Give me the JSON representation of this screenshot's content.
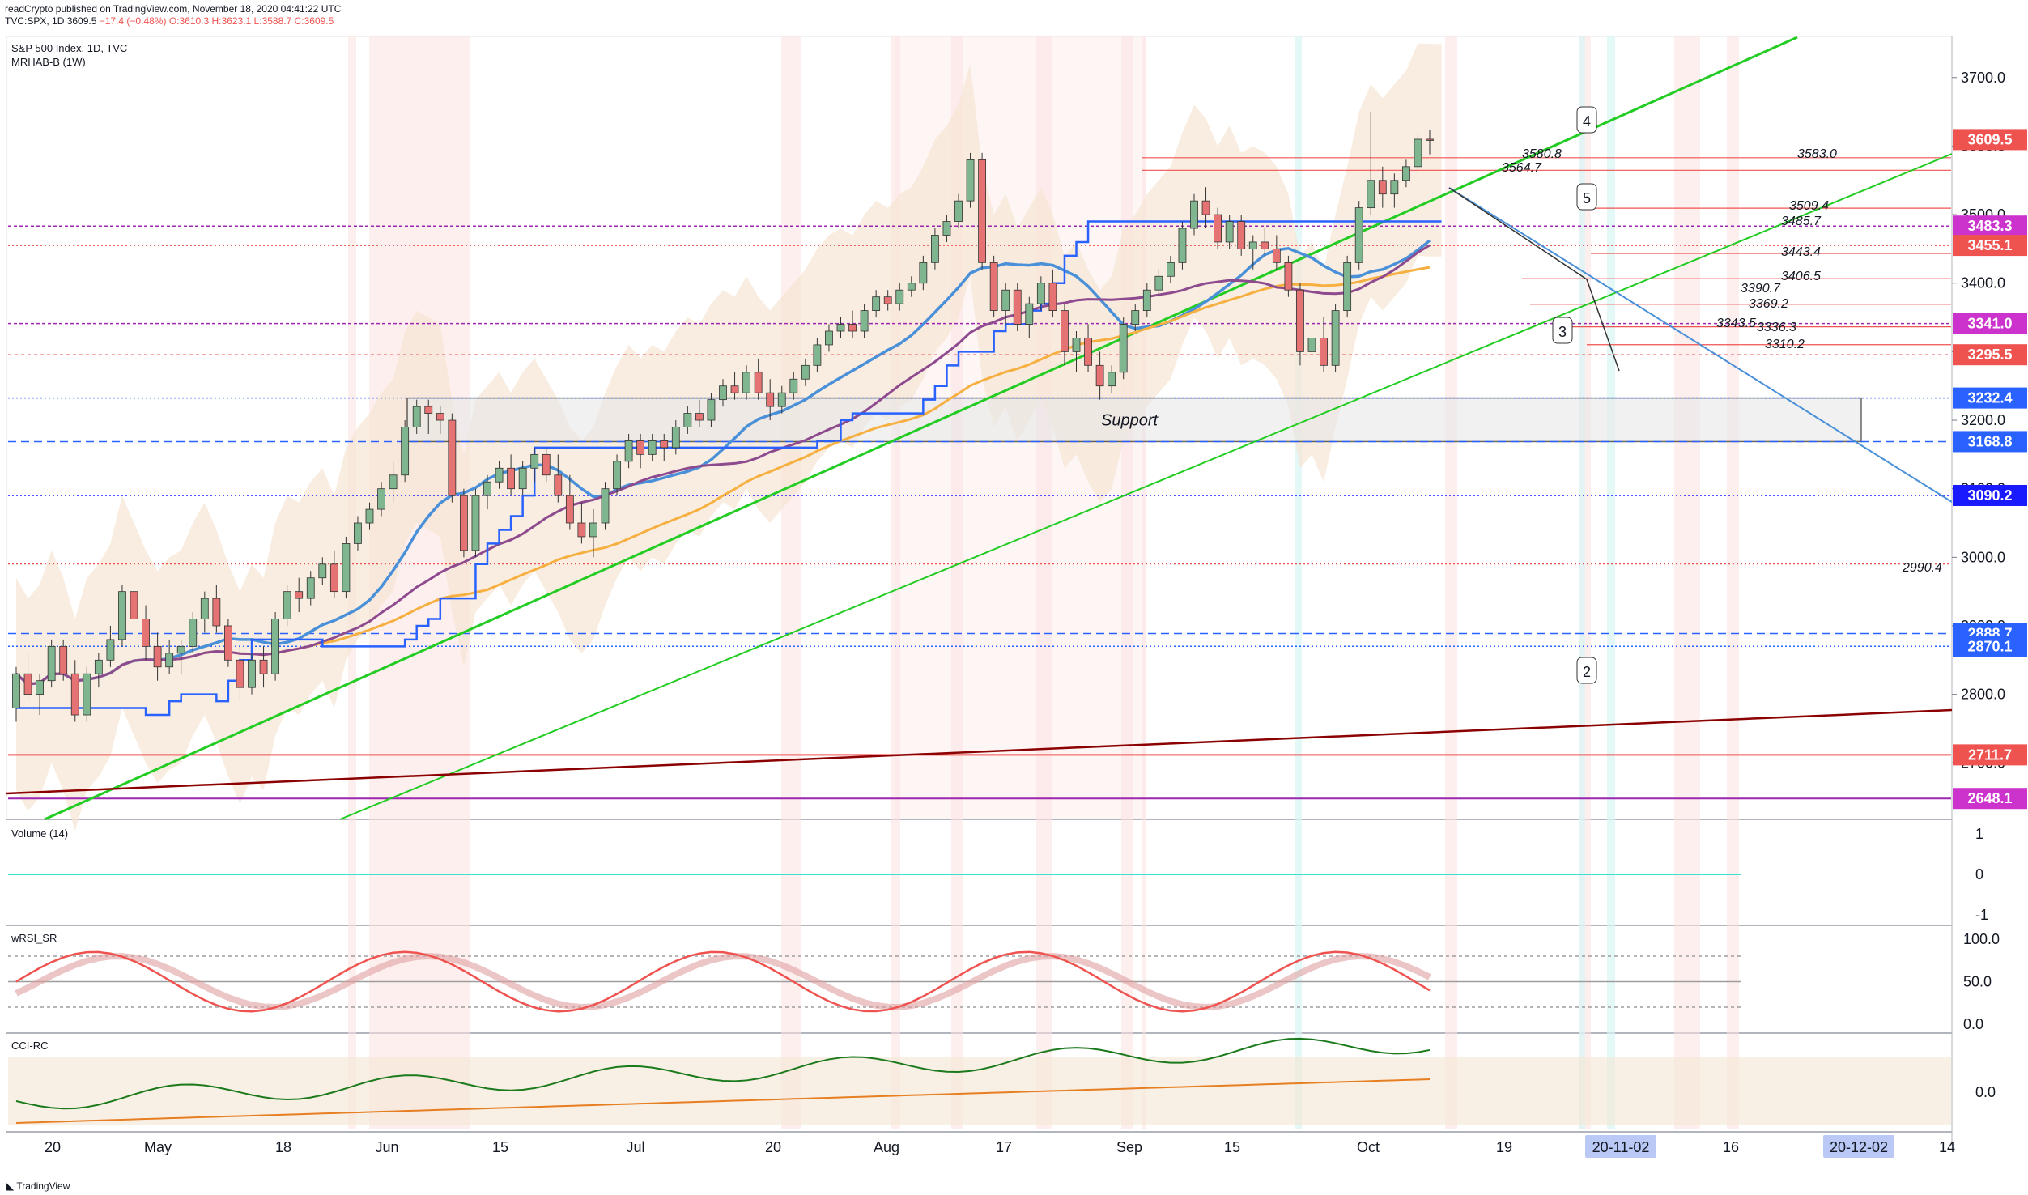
{
  "header": {
    "line1": "readCrypto published on TradingView.com, November 18, 2020 04:41:22 UTC",
    "line2_prefix": "TVC:SPX, 1D 3609.5",
    "change": "−17.4 (−0.48%)",
    "ohlc": "O:3610.3 H:3623.1 L:3588.7 C:3609.5"
  },
  "chart_title": "S&P 500 Index, 1D, TVC",
  "indicator_label": "MRHAB-B (1W)",
  "volume_label": "Volume (14)",
  "wrsi_label": "wRSI_SR",
  "cci_label": "CCI-RC",
  "support_label": "Support",
  "footer_brand": "TradingView",
  "colors": {
    "up": "#7fb58f",
    "down": "#e57373",
    "channel": "#22cc22",
    "blue": "#4a90d9",
    "red_line": "#8b0000",
    "orange": "#f5b041"
  },
  "chart_data": {
    "type": "candlestick",
    "symbol": "TVC:SPX",
    "ylim": [
      2620,
      3760
    ],
    "y_ticks": [
      "3700.0",
      "3600.0",
      "3500.0",
      "3400.0",
      "3300.0",
      "3200.0",
      "3100.0",
      "3000.0",
      "2900.0",
      "2800.0",
      "2700.0"
    ],
    "x_ticks": [
      "20",
      "May",
      "18",
      "Jun",
      "15",
      "Jul",
      "20",
      "Aug",
      "17",
      "Sep",
      "15",
      "Oct",
      "19",
      "20-11-02",
      "16",
      "20-12-02",
      "14"
    ],
    "price_tags": [
      {
        "value": "3609.5",
        "color": "#ef5350"
      },
      {
        "value": "3483.3",
        "color": "#cc33cc"
      },
      {
        "value": "3455.1",
        "color": "#ef5350"
      },
      {
        "value": "3341.0",
        "color": "#cc33cc"
      },
      {
        "value": "3295.5",
        "color": "#ef5350"
      },
      {
        "value": "3232.4",
        "color": "#2962ff"
      },
      {
        "value": "3168.8",
        "color": "#2962ff"
      },
      {
        "value": "3090.2",
        "color": "#1a1aff"
      },
      {
        "value": "2888.7",
        "color": "#2962ff"
      },
      {
        "value": "2870.1",
        "color": "#2962ff"
      },
      {
        "value": "2711.7",
        "color": "#ef5350"
      },
      {
        "value": "2648.1",
        "color": "#cc33cc"
      }
    ],
    "level_labels": [
      "3580.8",
      "3564.7",
      "3583.0",
      "3509.4",
      "3485.7",
      "3443.4",
      "3406.5",
      "3390.7",
      "3369.2",
      "3343.5",
      "3336.3",
      "3310.2",
      "2990.4"
    ],
    "wave_labels": [
      "4",
      "5",
      "3",
      "2"
    ],
    "volume_ticks": [
      "1",
      "0",
      "-1"
    ],
    "wrsi_ticks": [
      "100.0",
      "50.0",
      "0.0"
    ],
    "cci_ticks": [
      "0.0"
    ],
    "support_zone": [
      3168.8,
      3232.4
    ],
    "candles": [
      [
        2780,
        2840,
        2760,
        2830
      ],
      [
        2830,
        2860,
        2790,
        2800
      ],
      [
        2800,
        2830,
        2770,
        2820
      ],
      [
        2820,
        2880,
        2810,
        2870
      ],
      [
        2870,
        2880,
        2820,
        2830
      ],
      [
        2830,
        2850,
        2760,
        2770
      ],
      [
        2770,
        2840,
        2760,
        2830
      ],
      [
        2830,
        2860,
        2810,
        2850
      ],
      [
        2850,
        2900,
        2840,
        2880
      ],
      [
        2880,
        2960,
        2870,
        2950
      ],
      [
        2950,
        2960,
        2900,
        2910
      ],
      [
        2910,
        2930,
        2850,
        2870
      ],
      [
        2870,
        2890,
        2820,
        2840
      ],
      [
        2840,
        2880,
        2830,
        2860
      ],
      [
        2860,
        2880,
        2830,
        2870
      ],
      [
        2870,
        2920,
        2860,
        2910
      ],
      [
        2910,
        2950,
        2890,
        2940
      ],
      [
        2940,
        2960,
        2890,
        2900
      ],
      [
        2900,
        2910,
        2840,
        2850
      ],
      [
        2850,
        2870,
        2790,
        2810
      ],
      [
        2810,
        2860,
        2800,
        2850
      ],
      [
        2850,
        2870,
        2810,
        2830
      ],
      [
        2830,
        2920,
        2820,
        2910
      ],
      [
        2910,
        2960,
        2900,
        2950
      ],
      [
        2950,
        2970,
        2920,
        2940
      ],
      [
        2940,
        2980,
        2930,
        2970
      ],
      [
        2970,
        3000,
        2960,
        2990
      ],
      [
        2990,
        3010,
        2940,
        2950
      ],
      [
        2950,
        3030,
        2940,
        3020
      ],
      [
        3020,
        3060,
        3010,
        3050
      ],
      [
        3050,
        3080,
        3040,
        3070
      ],
      [
        3070,
        3110,
        3060,
        3100
      ],
      [
        3100,
        3140,
        3080,
        3120
      ],
      [
        3120,
        3200,
        3110,
        3190
      ],
      [
        3190,
        3230,
        3180,
        3220
      ],
      [
        3220,
        3230,
        3180,
        3210
      ],
      [
        3210,
        3220,
        3180,
        3200
      ],
      [
        3200,
        3210,
        3080,
        3090
      ],
      [
        3090,
        3100,
        3000,
        3010
      ],
      [
        3010,
        3100,
        3000,
        3090
      ],
      [
        3090,
        3120,
        3070,
        3110
      ],
      [
        3110,
        3140,
        3100,
        3130
      ],
      [
        3130,
        3150,
        3090,
        3100
      ],
      [
        3100,
        3140,
        3090,
        3130
      ],
      [
        3130,
        3160,
        3110,
        3150
      ],
      [
        3150,
        3160,
        3110,
        3120
      ],
      [
        3120,
        3150,
        3080,
        3090
      ],
      [
        3090,
        3120,
        3040,
        3050
      ],
      [
        3050,
        3080,
        3020,
        3030
      ],
      [
        3030,
        3070,
        3000,
        3050
      ],
      [
        3050,
        3110,
        3040,
        3100
      ],
      [
        3100,
        3150,
        3090,
        3140
      ],
      [
        3140,
        3180,
        3130,
        3170
      ],
      [
        3170,
        3180,
        3130,
        3150
      ],
      [
        3150,
        3180,
        3140,
        3170
      ],
      [
        3170,
        3180,
        3140,
        3160
      ],
      [
        3160,
        3200,
        3150,
        3190
      ],
      [
        3190,
        3220,
        3180,
        3210
      ],
      [
        3210,
        3230,
        3190,
        3200
      ],
      [
        3200,
        3240,
        3190,
        3230
      ],
      [
        3230,
        3260,
        3220,
        3250
      ],
      [
        3250,
        3270,
        3230,
        3240
      ],
      [
        3240,
        3280,
        3230,
        3270
      ],
      [
        3270,
        3290,
        3230,
        3240
      ],
      [
        3240,
        3260,
        3200,
        3220
      ],
      [
        3220,
        3250,
        3210,
        3240
      ],
      [
        3240,
        3270,
        3230,
        3260
      ],
      [
        3260,
        3290,
        3250,
        3280
      ],
      [
        3280,
        3320,
        3270,
        3310
      ],
      [
        3310,
        3340,
        3300,
        3330
      ],
      [
        3330,
        3350,
        3320,
        3340
      ],
      [
        3340,
        3360,
        3320,
        3330
      ],
      [
        3330,
        3370,
        3320,
        3360
      ],
      [
        3360,
        3390,
        3350,
        3380
      ],
      [
        3380,
        3390,
        3360,
        3370
      ],
      [
        3370,
        3400,
        3360,
        3390
      ],
      [
        3390,
        3410,
        3380,
        3400
      ],
      [
        3400,
        3440,
        3390,
        3430
      ],
      [
        3430,
        3480,
        3420,
        3470
      ],
      [
        3470,
        3500,
        3460,
        3490
      ],
      [
        3490,
        3530,
        3480,
        3520
      ],
      [
        3520,
        3590,
        3510,
        3580
      ],
      [
        3580,
        3590,
        3420,
        3430
      ],
      [
        3430,
        3440,
        3350,
        3360
      ],
      [
        3360,
        3400,
        3340,
        3390
      ],
      [
        3390,
        3400,
        3330,
        3340
      ],
      [
        3340,
        3380,
        3320,
        3370
      ],
      [
        3370,
        3410,
        3360,
        3400
      ],
      [
        3400,
        3420,
        3350,
        3360
      ],
      [
        3360,
        3370,
        3280,
        3300
      ],
      [
        3300,
        3330,
        3270,
        3320
      ],
      [
        3320,
        3340,
        3270,
        3280
      ],
      [
        3280,
        3300,
        3230,
        3250
      ],
      [
        3250,
        3280,
        3240,
        3270
      ],
      [
        3270,
        3350,
        3260,
        3340
      ],
      [
        3340,
        3370,
        3330,
        3360
      ],
      [
        3360,
        3400,
        3350,
        3390
      ],
      [
        3390,
        3420,
        3380,
        3410
      ],
      [
        3410,
        3440,
        3400,
        3430
      ],
      [
        3430,
        3490,
        3420,
        3480
      ],
      [
        3480,
        3530,
        3470,
        3520
      ],
      [
        3520,
        3540,
        3480,
        3500
      ],
      [
        3500,
        3510,
        3450,
        3460
      ],
      [
        3460,
        3500,
        3450,
        3490
      ],
      [
        3490,
        3500,
        3440,
        3450
      ],
      [
        3450,
        3470,
        3420,
        3460
      ],
      [
        3460,
        3480,
        3440,
        3450
      ],
      [
        3450,
        3470,
        3420,
        3430
      ],
      [
        3430,
        3440,
        3380,
        3390
      ],
      [
        3390,
        3400,
        3280,
        3300
      ],
      [
        3300,
        3340,
        3270,
        3320
      ],
      [
        3320,
        3350,
        3270,
        3280
      ],
      [
        3280,
        3370,
        3270,
        3360
      ],
      [
        3360,
        3440,
        3350,
        3430
      ],
      [
        3430,
        3520,
        3420,
        3510
      ],
      [
        3510,
        3650,
        3500,
        3550
      ],
      [
        3550,
        3570,
        3510,
        3530
      ],
      [
        3530,
        3560,
        3510,
        3550
      ],
      [
        3550,
        3580,
        3540,
        3570
      ],
      [
        3570,
        3620,
        3560,
        3610
      ],
      [
        3610,
        3623,
        3588,
        3609
      ]
    ]
  }
}
